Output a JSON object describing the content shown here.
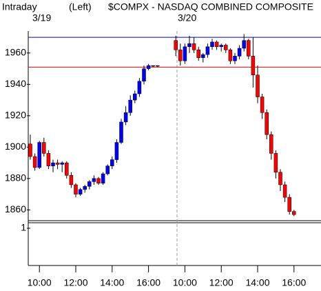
{
  "chart_data": {
    "type": "candlestick",
    "title": "$COMPX - NASDAQ COMBINED COMPOSITE",
    "subtitle": "Intraday",
    "axis_label": "(Left)",
    "dates": [
      "3/19",
      "3/20"
    ],
    "categories": [
      null,
      null,
      "10:00",
      null,
      null,
      null,
      null,
      null,
      null,
      null,
      "12:00",
      null,
      null,
      null,
      null,
      null,
      null,
      null,
      "14:00",
      null,
      null,
      null,
      null,
      null,
      null,
      null,
      "16:00",
      null,
      null,
      null,
      null,
      null,
      null,
      null,
      "10:00",
      null,
      null,
      null,
      null,
      null,
      null,
      null,
      "12:00",
      null,
      null,
      null,
      null,
      null,
      null,
      null,
      "14:00",
      null,
      null,
      null,
      null,
      null,
      null,
      null,
      "16:00"
    ],
    "open": [
      1902,
      1894,
      1887,
      1903,
      1896,
      1888,
      1890,
      1889,
      1890,
      1882,
      1876,
      1870,
      1873,
      1875,
      1878,
      1880,
      1877,
      1883,
      1888,
      1892,
      1903,
      1916,
      1922,
      1930,
      1934,
      1942,
      1950,
      1952,
      1952,
      null,
      null,
      null,
      1968,
      1962,
      1955,
      1964,
      1966,
      1962,
      1957,
      1959,
      1964,
      1967,
      1964,
      1965,
      1962,
      1955,
      1958,
      1963,
      1968,
      1958,
      1946,
      1932,
      1922,
      1908,
      1896,
      1884,
      1876,
      1868,
      1859
    ],
    "high": [
      1908,
      1896,
      1904,
      1906,
      1898,
      1892,
      1892,
      1891,
      1891,
      1884,
      1877,
      1874,
      1876,
      1879,
      1882,
      1881,
      1884,
      1889,
      1894,
      1905,
      1918,
      1926,
      1933,
      1936,
      1944,
      1952,
      1953,
      1952,
      1952,
      null,
      null,
      null,
      1971,
      1966,
      1966,
      1971,
      1970,
      1964,
      1960,
      1966,
      1969,
      1968,
      1966,
      1966,
      1963,
      1960,
      1965,
      1972,
      1969,
      1970,
      1952,
      1934,
      1924,
      1910,
      1898,
      1886,
      1878,
      1870,
      1860
    ],
    "low": [
      1892,
      1885,
      1886,
      1894,
      1886,
      1884,
      1886,
      1884,
      1880,
      1874,
      1868,
      1869,
      1871,
      1873,
      1876,
      1876,
      1876,
      1882,
      1886,
      1890,
      1902,
      1914,
      1920,
      1928,
      1932,
      1940,
      1949,
      1951,
      1951,
      null,
      null,
      null,
      1958,
      1952,
      1953,
      1960,
      1960,
      1955,
      1954,
      1957,
      1962,
      1962,
      1961,
      1960,
      1953,
      1953,
      1956,
      1961,
      1956,
      1938,
      1928,
      1918,
      1905,
      1892,
      1880,
      1872,
      1865,
      1857,
      1856
    ],
    "close": [
      1894,
      1887,
      1903,
      1896,
      1888,
      1890,
      1889,
      1890,
      1882,
      1876,
      1870,
      1873,
      1875,
      1878,
      1880,
      1877,
      1883,
      1888,
      1892,
      1903,
      1916,
      1922,
      1930,
      1934,
      1942,
      1950,
      1952,
      1952,
      1952,
      null,
      null,
      null,
      1962,
      1955,
      1964,
      1966,
      1962,
      1957,
      1959,
      1964,
      1967,
      1964,
      1965,
      1962,
      1955,
      1958,
      1963,
      1968,
      1958,
      1946,
      1932,
      1922,
      1908,
      1896,
      1884,
      1876,
      1868,
      1859,
      1857
    ],
    "up_color": "#0000ff",
    "down_color": "#ff0000",
    "ylim": [
      1854,
      1974
    ],
    "yticks": [
      1860,
      1880,
      1900,
      1920,
      1940,
      1960
    ],
    "hlines": [
      {
        "value": 1970,
        "color": "#0000cc"
      },
      {
        "value": 1951,
        "color": "#ff0000"
      }
    ],
    "lower_yticks": [
      1
    ]
  }
}
